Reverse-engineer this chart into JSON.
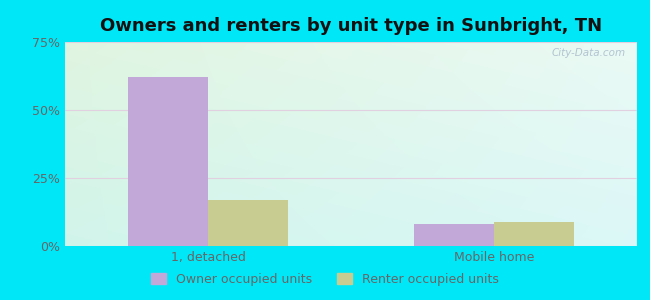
{
  "title": "Owners and renters by unit type in Sunbright, TN",
  "categories": [
    "1, detached",
    "Mobile home"
  ],
  "owner_values": [
    62,
    8
  ],
  "renter_values": [
    17,
    9
  ],
  "owner_color": "#c2a8d8",
  "renter_color": "#c8cc90",
  "bar_width": 0.28,
  "ylim": [
    0,
    75
  ],
  "yticks": [
    0,
    25,
    50,
    75
  ],
  "yticklabels": [
    "0%",
    "25%",
    "50%",
    "75%"
  ],
  "background_outer": "#00e8f8",
  "grid_color": "#e0d0e0",
  "watermark": "City-Data.com",
  "legend_owner": "Owner occupied units",
  "legend_renter": "Renter occupied units",
  "title_fontsize": 13,
  "tick_fontsize": 9,
  "legend_fontsize": 9,
  "tick_color": "#666666"
}
